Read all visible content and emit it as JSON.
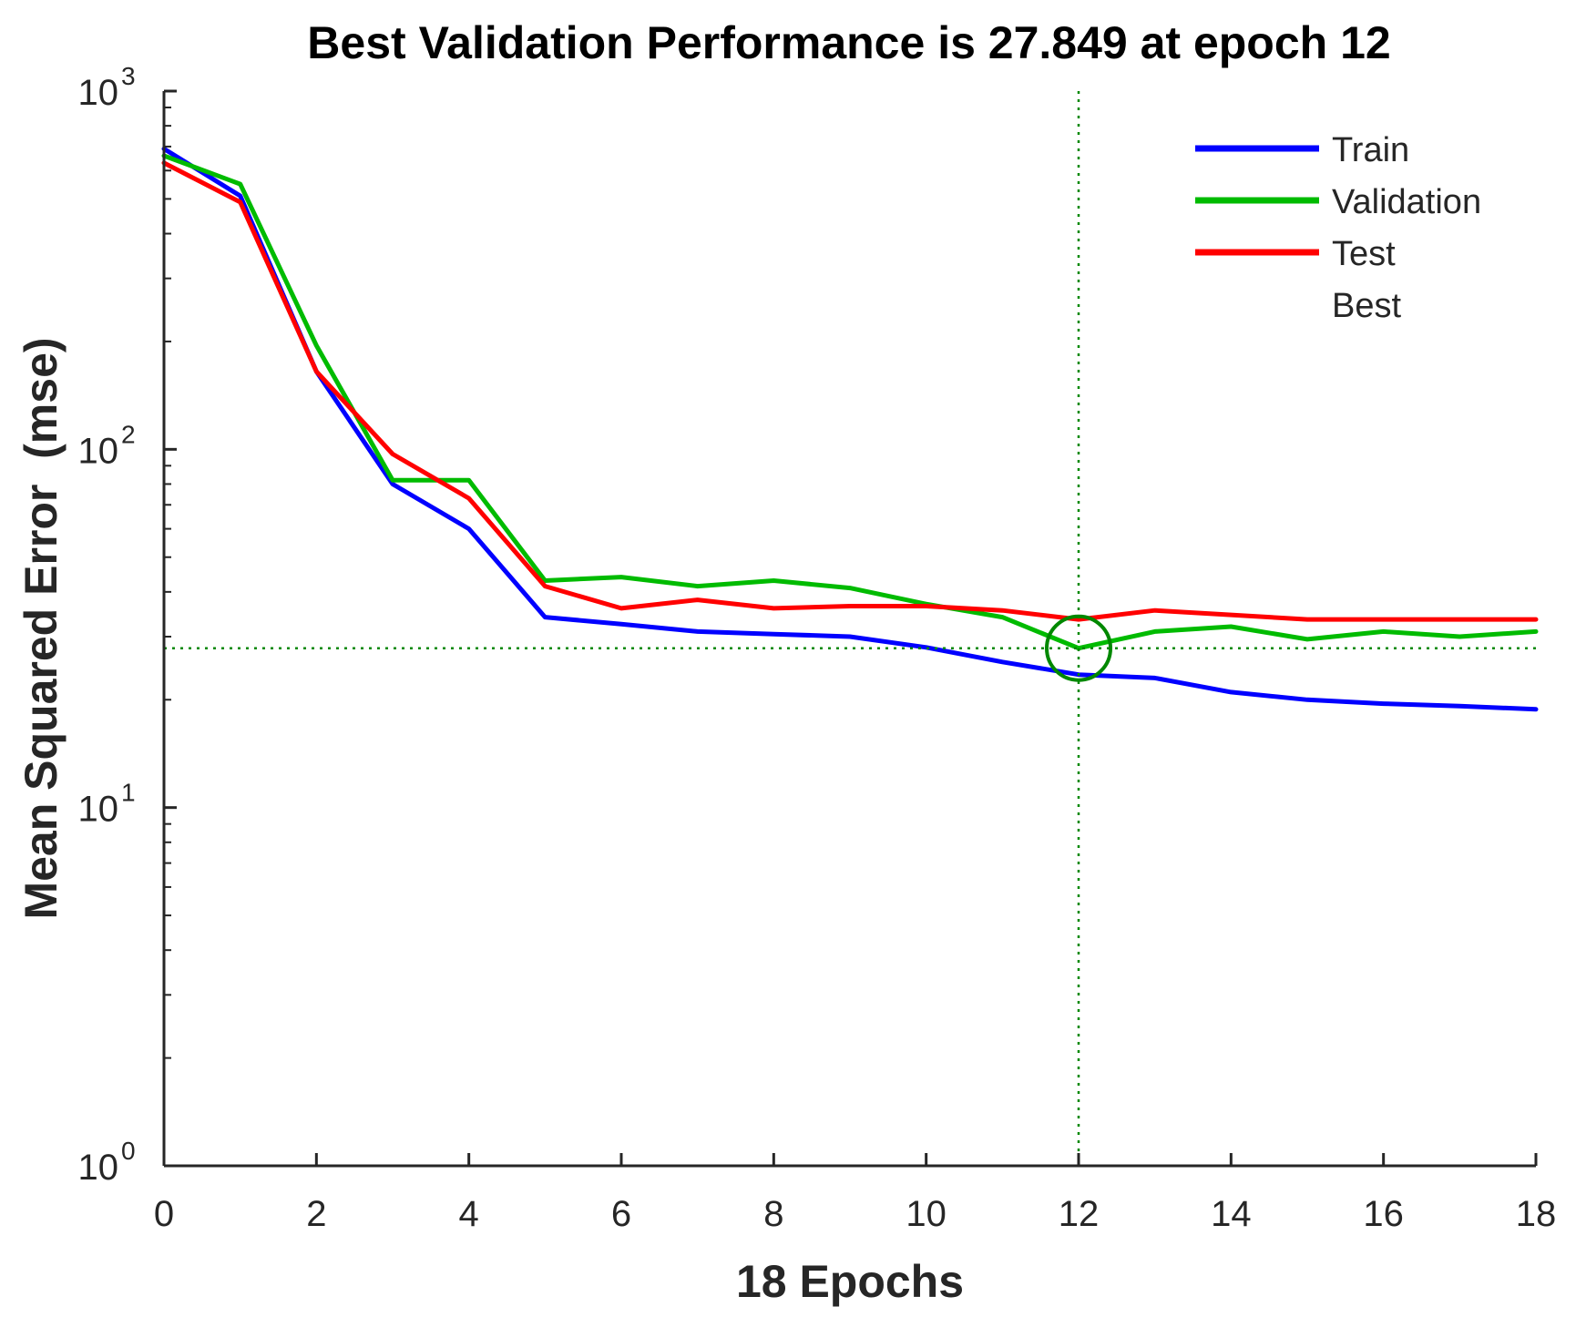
{
  "chart_data": {
    "type": "line",
    "title": "Best Validation Performance is 27.849 at epoch 12",
    "xlabel": "18 Epochs",
    "ylabel": "Mean Squared Error  (mse)",
    "x_scale": "linear",
    "y_scale": "log",
    "xlim": [
      0,
      18
    ],
    "ylim": [
      1,
      1000
    ],
    "x_ticks": [
      0,
      2,
      4,
      6,
      8,
      10,
      12,
      14,
      16,
      18
    ],
    "x_tick_labels": [
      "0",
      "2",
      "4",
      "6",
      "8",
      "10",
      "12",
      "14",
      "16",
      "18"
    ],
    "y_ticks": [
      1,
      10,
      100,
      1000
    ],
    "y_tick_labels": [
      {
        "base": "10",
        "exp": "0"
      },
      {
        "base": "10",
        "exp": "1"
      },
      {
        "base": "10",
        "exp": "2"
      },
      {
        "base": "10",
        "exp": "3"
      }
    ],
    "grid": false,
    "legend_position": "top-right",
    "x": [
      0,
      1,
      2,
      3,
      4,
      5,
      6,
      7,
      8,
      9,
      10,
      11,
      12,
      13,
      14,
      15,
      16,
      17,
      18
    ],
    "series": [
      {
        "name": "Train",
        "color": "#0000ff",
        "values": [
          690,
          510,
          165,
          80,
          60,
          34,
          32.5,
          31,
          30.5,
          30,
          28,
          25.5,
          23.5,
          23,
          21,
          20,
          19.5,
          19.2,
          18.8
        ]
      },
      {
        "name": "Validation",
        "color": "#00bb00",
        "values": [
          660,
          550,
          195,
          82,
          82,
          43,
          44,
          41.5,
          43,
          41,
          37,
          34,
          27.849,
          31,
          32,
          29.5,
          31,
          30,
          31
        ]
      },
      {
        "name": "Test",
        "color": "#ff0000",
        "values": [
          630,
          490,
          165,
          97,
          73,
          41.5,
          36,
          38,
          36,
          36.5,
          36.5,
          35.5,
          33.5,
          35.5,
          34.5,
          33.5,
          33.5,
          33.5,
          33.5
        ]
      }
    ],
    "best": {
      "name": "Best",
      "epoch": 12,
      "value": 27.849,
      "color": "#008800"
    }
  }
}
